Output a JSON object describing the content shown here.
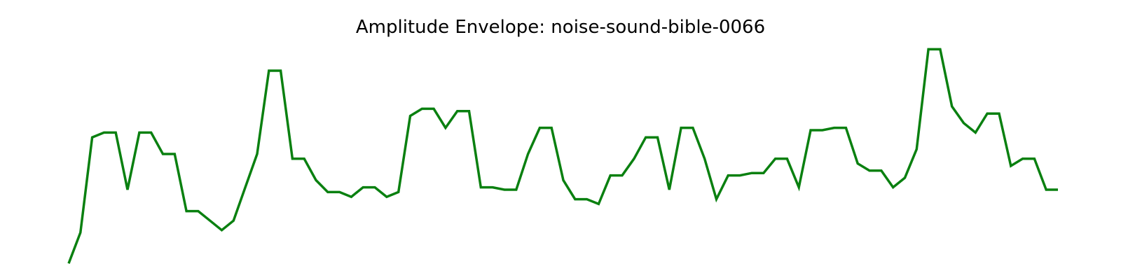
{
  "chart_data": {
    "type": "line",
    "title": "Amplitude Envelope: noise-sound-bible-0066",
    "xlabel": "",
    "ylabel": "",
    "axes_visible": false,
    "grid": false,
    "line_color": "#0a8010",
    "xlim": [
      0,
      84
    ],
    "ylim": [
      0.0,
      1.0
    ],
    "series": [
      {
        "values": [
          0.04,
          0.17,
          0.57,
          0.59,
          0.59,
          0.35,
          0.59,
          0.59,
          0.5,
          0.5,
          0.26,
          0.26,
          0.22,
          0.18,
          0.22,
          0.36,
          0.5,
          0.85,
          0.85,
          0.48,
          0.48,
          0.39,
          0.34,
          0.34,
          0.32,
          0.36,
          0.36,
          0.32,
          0.34,
          0.66,
          0.69,
          0.69,
          0.61,
          0.68,
          0.68,
          0.36,
          0.36,
          0.35,
          0.35,
          0.5,
          0.61,
          0.61,
          0.39,
          0.31,
          0.31,
          0.29,
          0.41,
          0.41,
          0.48,
          0.57,
          0.57,
          0.35,
          0.61,
          0.61,
          0.48,
          0.31,
          0.41,
          0.41,
          0.42,
          0.42,
          0.48,
          0.48,
          0.36,
          0.6,
          0.6,
          0.61,
          0.61,
          0.46,
          0.43,
          0.43,
          0.36,
          0.4,
          0.52,
          0.94,
          0.94,
          0.7,
          0.63,
          0.59,
          0.67,
          0.67,
          0.45,
          0.48,
          0.48,
          0.35,
          0.35
        ]
      }
    ]
  }
}
